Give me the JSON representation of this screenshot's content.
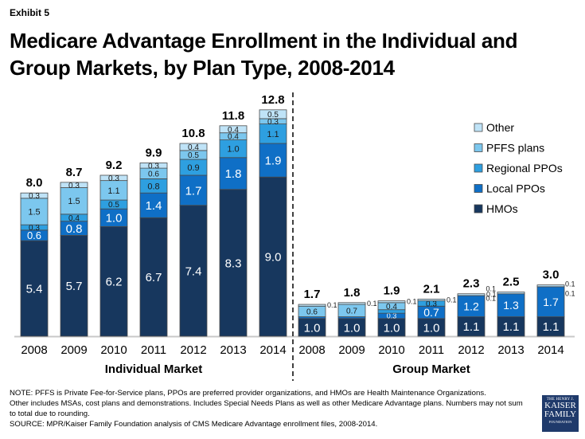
{
  "header": {
    "exhibit": "Exhibit 5",
    "title": "Medicare Advantage Enrollment in the Individual and Group Markets, by Plan Type, 2008-2014"
  },
  "chart_data": {
    "type": "bar",
    "stacked": true,
    "title": "Medicare Advantage Enrollment in the Individual and Group Markets, by Plan Type, 2008-2014",
    "xlabel": "",
    "ylabel": "",
    "grid": false,
    "legend_position": "right",
    "units": "millions",
    "series_order_bottom_to_top": [
      "HMOs",
      "Local PPOs",
      "Regional PPOs",
      "PFFS plans",
      "Other"
    ],
    "colors": {
      "HMOs": "#17375e",
      "Local PPOs": "#0f6fc6",
      "Regional PPOs": "#2e9fe0",
      "PFFS plans": "#7cc7ee",
      "Other": "#bfe3f7"
    },
    "legend": [
      "Other",
      "PFFS plans",
      "Regional PPOs",
      "Local PPOs",
      "HMOs"
    ],
    "groups": [
      {
        "name": "Individual Market",
        "categories": [
          "2008",
          "2009",
          "2010",
          "2011",
          "2012",
          "2013",
          "2014"
        ],
        "totals": [
          "8.0",
          "8.7",
          "9.2",
          "9.9",
          "10.8",
          "11.8",
          "12.8"
        ],
        "series": [
          {
            "name": "HMOs",
            "values": [
              5.4,
              5.7,
              6.2,
              6.7,
              7.4,
              8.3,
              9.0
            ],
            "labels": [
              "5.4",
              "5.7",
              "6.2",
              "6.7",
              "7.4",
              "8.3",
              "9.0"
            ]
          },
          {
            "name": "Local PPOs",
            "values": [
              0.6,
              0.8,
              1.0,
              1.4,
              1.7,
              1.8,
              1.9
            ],
            "labels": [
              "0.6",
              "0.8",
              "1.0",
              "1.4",
              "1.7",
              "1.8",
              "1.9"
            ]
          },
          {
            "name": "Regional PPOs",
            "values": [
              0.3,
              0.4,
              0.5,
              0.8,
              0.9,
              1.0,
              1.1
            ],
            "labels": [
              "0.3",
              "0.4",
              "0.5",
              "0.8",
              "0.9",
              "1.0",
              "1.1"
            ]
          },
          {
            "name": "PFFS plans",
            "values": [
              1.5,
              1.5,
              1.1,
              0.6,
              0.5,
              0.4,
              0.3
            ],
            "labels": [
              "1.5",
              "1.5",
              "1.1",
              "0.6",
              "0.5",
              "0.4",
              "0.3"
            ]
          },
          {
            "name": "Other",
            "values": [
              0.3,
              0.3,
              0.3,
              0.3,
              0.4,
              0.4,
              0.5
            ],
            "labels": [
              "0.3",
              "0.3",
              "0.3",
              "0.3",
              "0.4",
              "0.4",
              "0.5"
            ]
          }
        ]
      },
      {
        "name": "Group Market",
        "categories": [
          "2008",
          "2009",
          "2010",
          "2011",
          "2012",
          "2013",
          "2014"
        ],
        "totals": [
          "1.7",
          "1.8",
          "1.9",
          "2.1",
          "2.3",
          "2.5",
          "3.0"
        ],
        "series": [
          {
            "name": "HMOs",
            "values": [
              1.0,
              1.0,
              1.0,
              1.0,
              1.1,
              1.1,
              1.1
            ],
            "labels": [
              "1.0",
              "1.0",
              "1.0",
              "1.0",
              "1.1",
              "1.1",
              "1.1"
            ]
          },
          {
            "name": "Local PPOs",
            "values": [
              0.1,
              0.1,
              0.3,
              0.7,
              1.2,
              1.3,
              1.7
            ],
            "labels": [
              "0.1",
              "0.1",
              "0.3",
              "0.7",
              "1.2",
              "1.3",
              "1.7"
            ]
          },
          {
            "name": "Regional PPOs",
            "values": [
              0.0,
              0.0,
              0.2,
              0.3,
              0.0,
              0.0,
              0.0
            ],
            "labels": [
              "",
              "",
              "0.2",
              "0.3",
              "",
              "",
              ""
            ]
          },
          {
            "name": "PFFS plans",
            "values": [
              0.6,
              0.7,
              0.4,
              0.0,
              0.0,
              0.0,
              0.0
            ],
            "labels": [
              "0.6",
              "0.7",
              "0.4",
              "",
              "",
              "",
              ""
            ]
          },
          {
            "name": "Other",
            "values": [
              0.1,
              0.1,
              0.1,
              0.1,
              0.1,
              0.1,
              0.1
            ],
            "labels": [
              "0.1",
              "0.1",
              "0.1",
              "0.1",
              "0.1",
              "0.1",
              "0.1"
            ]
          }
        ],
        "outside_labels": [
          {
            "category": "2008",
            "text": "0.1"
          },
          {
            "category": "2009",
            "text": "0.1"
          },
          {
            "category": "2010",
            "text": "0.1"
          },
          {
            "category": "2011",
            "text": "0.1"
          },
          {
            "category": "2012",
            "text": "0.1"
          },
          {
            "category": "2013",
            "text": "0.1"
          },
          {
            "category": "2013",
            "text": "0.1"
          },
          {
            "category": "2014",
            "text": "0.1"
          },
          {
            "category": "2014",
            "text": "0.1"
          }
        ]
      }
    ]
  },
  "footer": {
    "note_1": "NOTE:  PFFS is Private Fee-for-Service plans, PPOs are preferred provider organizations, and HMOs are Health Maintenance Organizations.",
    "note_2": "Other includes MSAs, cost plans and demonstrations.  Includes Special Needs Plans as well as other Medicare Advantage plans.   Numbers may not sum to total due to rounding.",
    "source": "SOURCE:  MPR/Kaiser Family Foundation analysis of CMS Medicare Advantage enrollment files, 2008-2014.",
    "logo": {
      "line1": "THE HENRY J.",
      "line2": "KAISER",
      "line3": "FAMILY",
      "line4": "FOUNDATION"
    }
  }
}
